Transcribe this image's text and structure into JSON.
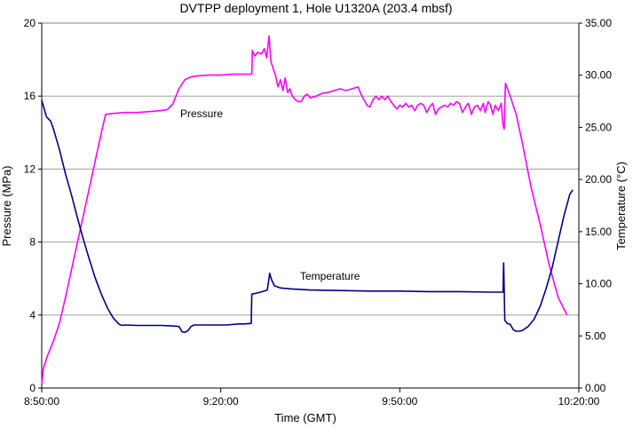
{
  "chart_data": {
    "type": "line",
    "title": "DVTPP deployment 1, Hole U1320A (203.4 mbsf)",
    "xlabel": "Time (GMT)",
    "ylabel_left": "Pressure (MPa)",
    "ylabel_right": "Temperature (°C)",
    "xlim_minutes": [
      0,
      90
    ],
    "x_ticks": [
      {
        "m": 0,
        "label": "8:50:00"
      },
      {
        "m": 30,
        "label": "9:20:00"
      },
      {
        "m": 60,
        "label": "9:50:00"
      },
      {
        "m": 90,
        "label": "10:20:00"
      }
    ],
    "ylim_left": [
      0,
      20
    ],
    "yticks_left": [
      "0",
      "4",
      "8",
      "12",
      "16",
      "20"
    ],
    "ylim_right": [
      0,
      35
    ],
    "yticks_right": [
      "0.00",
      "5.00",
      "10.00",
      "15.00",
      "20.00",
      "25.00",
      "30.00",
      "35.00"
    ],
    "grid": true,
    "colors": {
      "pressure": "#ff00ff",
      "temperature": "#000080",
      "grid": "#a0a0a0"
    },
    "series": [
      {
        "name": "Pressure",
        "axis": "left",
        "label": "Pressure",
        "points": [
          [
            0,
            0.2
          ],
          [
            0.3,
            1.1
          ],
          [
            1,
            1.8
          ],
          [
            2,
            2.6
          ],
          [
            3,
            3.6
          ],
          [
            4,
            5.0
          ],
          [
            5,
            6.5
          ],
          [
            6,
            8.0
          ],
          [
            7,
            9.5
          ],
          [
            8,
            11.0
          ],
          [
            9,
            12.5
          ],
          [
            10,
            14.0
          ],
          [
            10.7,
            15.0
          ],
          [
            12,
            15.05
          ],
          [
            14,
            15.1
          ],
          [
            16,
            15.1
          ],
          [
            18,
            15.15
          ],
          [
            20,
            15.2
          ],
          [
            21,
            15.25
          ],
          [
            21.5,
            15.4
          ],
          [
            22,
            15.6
          ],
          [
            23,
            16.4
          ],
          [
            24,
            16.9
          ],
          [
            25,
            17.05
          ],
          [
            26,
            17.1
          ],
          [
            28,
            17.15
          ],
          [
            30,
            17.15
          ],
          [
            32,
            17.2
          ],
          [
            34,
            17.2
          ],
          [
            35.2,
            17.2
          ],
          [
            35.3,
            18.5
          ],
          [
            35.7,
            18.2
          ],
          [
            36.2,
            18.4
          ],
          [
            36.8,
            18.3
          ],
          [
            37.3,
            18.6
          ],
          [
            37.7,
            18.1
          ],
          [
            38.1,
            19.3
          ],
          [
            38.4,
            17.9
          ],
          [
            38.8,
            17.5
          ],
          [
            39.2,
            17.1
          ],
          [
            39.6,
            16.5
          ],
          [
            40,
            16.9
          ],
          [
            40.4,
            16.3
          ],
          [
            40.8,
            17.0
          ],
          [
            41.2,
            16.2
          ],
          [
            41.6,
            16.4
          ],
          [
            42,
            16.0
          ],
          [
            42.5,
            15.8
          ],
          [
            43,
            15.7
          ],
          [
            43.5,
            15.7
          ],
          [
            44,
            16.0
          ],
          [
            44.5,
            16.1
          ],
          [
            45,
            15.9
          ],
          [
            46,
            16.0
          ],
          [
            47,
            16.15
          ],
          [
            48,
            16.2
          ],
          [
            49,
            16.3
          ],
          [
            50,
            16.4
          ],
          [
            51,
            16.3
          ],
          [
            52,
            16.4
          ],
          [
            53,
            16.5
          ],
          [
            53.5,
            16.1
          ],
          [
            54,
            15.8
          ],
          [
            54.5,
            15.5
          ],
          [
            55,
            15.4
          ],
          [
            55.5,
            15.8
          ],
          [
            56,
            16.0
          ],
          [
            56.5,
            15.8
          ],
          [
            57,
            16.0
          ],
          [
            57.5,
            15.8
          ],
          [
            58,
            16.0
          ],
          [
            58.5,
            15.7
          ],
          [
            59,
            15.5
          ],
          [
            59.5,
            15.3
          ],
          [
            60,
            15.5
          ],
          [
            60.5,
            15.4
          ],
          [
            61,
            15.6
          ],
          [
            61.5,
            15.4
          ],
          [
            62,
            15.5
          ],
          [
            62.5,
            15.2
          ],
          [
            63,
            15.5
          ],
          [
            63.5,
            15.6
          ],
          [
            64,
            15.5
          ],
          [
            64.5,
            15.1
          ],
          [
            65,
            15.4
          ],
          [
            65.5,
            15.6
          ],
          [
            66,
            15.0
          ],
          [
            66.5,
            15.3
          ],
          [
            67,
            15.4
          ],
          [
            67.5,
            15.5
          ],
          [
            68,
            15.4
          ],
          [
            68.5,
            15.6
          ],
          [
            69,
            15.5
          ],
          [
            69.5,
            15.7
          ],
          [
            70,
            15.6
          ],
          [
            70.5,
            15.1
          ],
          [
            71,
            15.4
          ],
          [
            71.5,
            15.6
          ],
          [
            72,
            15.0
          ],
          [
            72.5,
            15.4
          ],
          [
            73,
            15.5
          ],
          [
            73.5,
            15.2
          ],
          [
            74,
            15.6
          ],
          [
            74.3,
            15.1
          ],
          [
            74.8,
            15.7
          ],
          [
            75.2,
            15.5
          ],
          [
            75.6,
            15.0
          ],
          [
            76,
            15.5
          ],
          [
            76.5,
            15.2
          ],
          [
            77,
            15.6
          ],
          [
            77.3,
            14.4
          ],
          [
            77.5,
            14.2
          ],
          [
            77.7,
            16.7
          ],
          [
            78.5,
            16.0
          ],
          [
            79.5,
            15.0
          ],
          [
            80.5,
            13.5
          ],
          [
            82,
            11.0
          ],
          [
            83.5,
            9.0
          ],
          [
            85,
            6.8
          ],
          [
            86.5,
            5.0
          ],
          [
            88,
            4.0
          ]
        ]
      },
      {
        "name": "Temperature",
        "axis": "right",
        "label": "Temperature",
        "points": [
          [
            0,
            27.6
          ],
          [
            0.3,
            27.0
          ],
          [
            0.8,
            26.0
          ],
          [
            1.5,
            25.6
          ],
          [
            2,
            24.8
          ],
          [
            3,
            22.8
          ],
          [
            4,
            20.5
          ],
          [
            5,
            18.5
          ],
          [
            6,
            16.3
          ],
          [
            7,
            14.2
          ],
          [
            8,
            12.3
          ],
          [
            9,
            10.5
          ],
          [
            10,
            9.0
          ],
          [
            11,
            7.7
          ],
          [
            12,
            6.7
          ],
          [
            13,
            6.1
          ],
          [
            13.5,
            6.0
          ],
          [
            14,
            6.05
          ],
          [
            16,
            6.0
          ],
          [
            18,
            6.0
          ],
          [
            20,
            6.0
          ],
          [
            22,
            5.95
          ],
          [
            23,
            5.9
          ],
          [
            23.5,
            5.4
          ],
          [
            24,
            5.35
          ],
          [
            24.5,
            5.5
          ],
          [
            25,
            5.9
          ],
          [
            25.5,
            6.05
          ],
          [
            27,
            6.05
          ],
          [
            29,
            6.05
          ],
          [
            31,
            6.05
          ],
          [
            33,
            6.15
          ],
          [
            34,
            6.15
          ],
          [
            35.1,
            6.2
          ],
          [
            35.2,
            9.0
          ],
          [
            36,
            9.1
          ],
          [
            37,
            9.25
          ],
          [
            37.8,
            9.4
          ],
          [
            38.2,
            11.0
          ],
          [
            38.5,
            10.4
          ],
          [
            39,
            9.8
          ],
          [
            40,
            9.6
          ],
          [
            42,
            9.5
          ],
          [
            45,
            9.4
          ],
          [
            50,
            9.35
          ],
          [
            55,
            9.3
          ],
          [
            60,
            9.3
          ],
          [
            65,
            9.25
          ],
          [
            70,
            9.25
          ],
          [
            75,
            9.2
          ],
          [
            77.3,
            9.2
          ],
          [
            77.4,
            12.0
          ],
          [
            77.5,
            9.2
          ],
          [
            77.6,
            6.5
          ],
          [
            78,
            6.2
          ],
          [
            78.5,
            6.1
          ],
          [
            79,
            5.6
          ],
          [
            79.5,
            5.45
          ],
          [
            80,
            5.45
          ],
          [
            80.5,
            5.5
          ],
          [
            81.5,
            5.9
          ],
          [
            82.5,
            6.6
          ],
          [
            83.5,
            7.8
          ],
          [
            84.5,
            9.5
          ],
          [
            85.5,
            11.5
          ],
          [
            86.5,
            14.0
          ],
          [
            87.5,
            16.5
          ],
          [
            88.5,
            18.6
          ],
          [
            89,
            19.0
          ]
        ]
      }
    ],
    "annotations": [
      {
        "text": "Pressure",
        "series": "Pressure"
      },
      {
        "text": "Temperature",
        "series": "Temperature"
      }
    ]
  }
}
